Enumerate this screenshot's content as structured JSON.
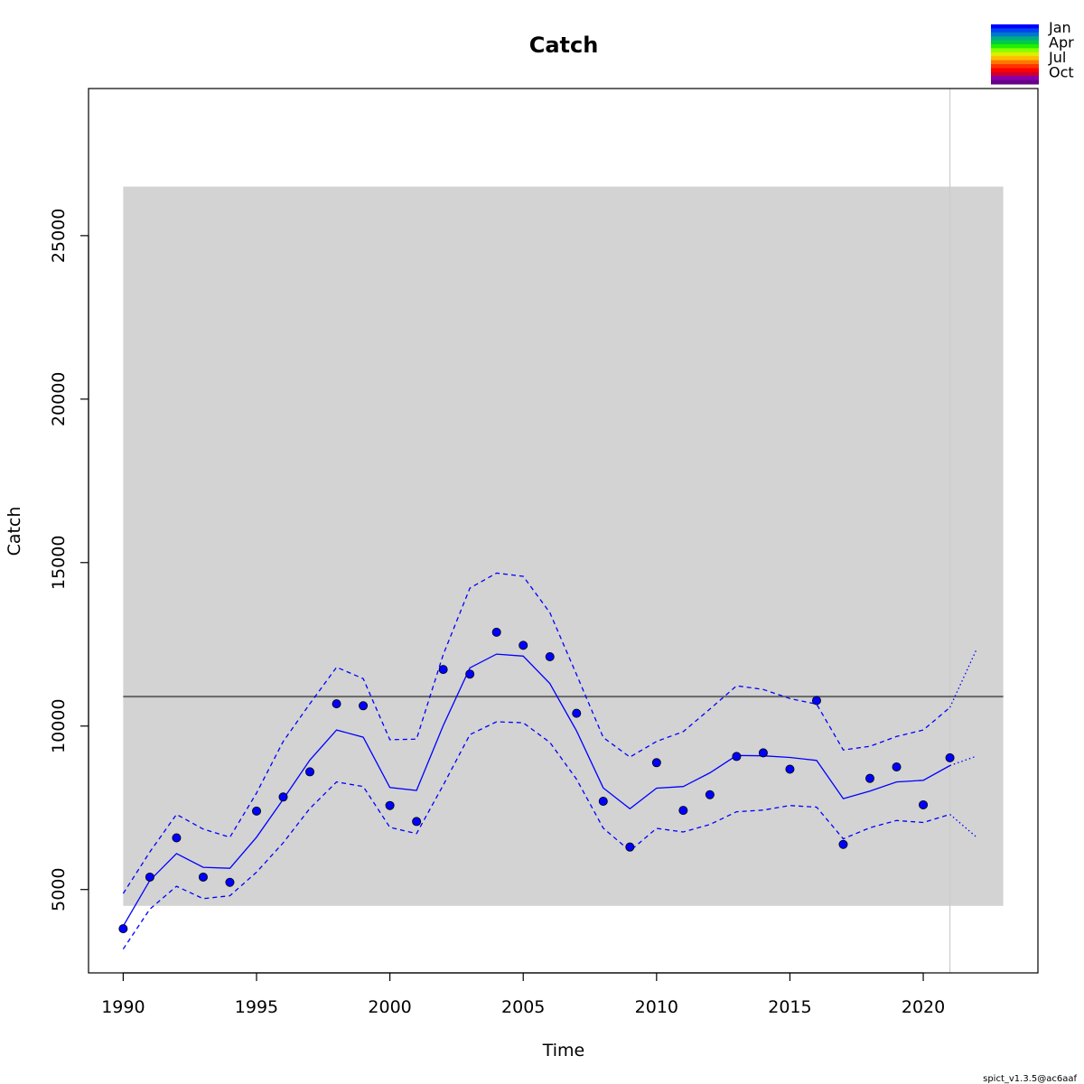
{
  "chart_data": {
    "type": "line",
    "title": "Catch",
    "xlabel": "Time",
    "ylabel": "Catch",
    "xlim": [
      1988.7,
      2024.3
    ],
    "ylim": [
      2450,
      29500
    ],
    "x_ticks": [
      1990,
      1995,
      2000,
      2005,
      2010,
      2015,
      2020
    ],
    "y_ticks": [
      5000,
      10000,
      15000,
      20000,
      25000
    ],
    "shaded_region": {
      "x": [
        1990,
        2023
      ],
      "y": [
        4500,
        26500
      ],
      "color": "#d3d3d3"
    },
    "reference_line": {
      "y": 10900,
      "color": "#666666"
    },
    "vertical_line": {
      "x": 2021,
      "color": "#cccccc"
    },
    "series": [
      {
        "role": "observed",
        "style": "points",
        "color": "#0000ff",
        "x": [
          1990,
          1991,
          1992,
          1993,
          1994,
          1995,
          1996,
          1997,
          1998,
          1999,
          2000,
          2001,
          2002,
          2003,
          2004,
          2005,
          2006,
          2007,
          2008,
          2009,
          2010,
          2011,
          2012,
          2013,
          2014,
          2015,
          2016,
          2017,
          2018,
          2019,
          2020,
          2021
        ],
        "y": [
          3800,
          5380,
          6580,
          5380,
          5220,
          7400,
          7830,
          8600,
          10680,
          10620,
          7570,
          7080,
          11730,
          11590,
          12870,
          12470,
          12120,
          10390,
          7700,
          6300,
          8880,
          7420,
          7900,
          9070,
          9180,
          8680,
          10780,
          6380,
          8400,
          8750,
          7590,
          9030
        ]
      },
      {
        "role": "estimate",
        "style": "solid",
        "color": "#0000ff",
        "x": [
          1990,
          1991,
          1992,
          1993,
          1994,
          1995,
          1996,
          1997,
          1998,
          1999,
          2000,
          2001,
          2002,
          2003,
          2004,
          2005,
          2006,
          2007,
          2008,
          2009,
          2010,
          2011,
          2012,
          2013,
          2014,
          2015,
          2016,
          2017,
          2018,
          2019,
          2020,
          2021
        ],
        "y": [
          3880,
          5280,
          6100,
          5680,
          5650,
          6600,
          7760,
          8960,
          9880,
          9660,
          8120,
          8030,
          10010,
          11780,
          12200,
          12140,
          11300,
          9850,
          8110,
          7470,
          8100,
          8150,
          8570,
          9100,
          9090,
          9040,
          8950,
          7780,
          8010,
          8290,
          8340,
          8790
        ]
      },
      {
        "role": "upper-ci",
        "style": "dashed",
        "color": "#0000ff",
        "x": [
          1990,
          1991,
          1992,
          1993,
          1994,
          1995,
          1996,
          1997,
          1998,
          1999,
          2000,
          2001,
          2002,
          2003,
          2004,
          2005,
          2006,
          2007,
          2008,
          2009,
          2010,
          2011,
          2012,
          2013,
          2014,
          2015,
          2016,
          2017,
          2018,
          2019,
          2020,
          2021
        ],
        "y": [
          4880,
          6150,
          7300,
          6850,
          6600,
          7950,
          9530,
          10680,
          11800,
          11450,
          9580,
          9600,
          12180,
          14220,
          14680,
          14580,
          13470,
          11570,
          9650,
          9050,
          9530,
          9830,
          10520,
          11230,
          11120,
          10840,
          10670,
          9270,
          9380,
          9680,
          9880,
          10570
        ]
      },
      {
        "role": "lower-ci",
        "style": "dashed",
        "color": "#0000ff",
        "x": [
          1990,
          1991,
          1992,
          1993,
          1994,
          1995,
          1996,
          1997,
          1998,
          1999,
          2000,
          2001,
          2002,
          2003,
          2004,
          2005,
          2006,
          2007,
          2008,
          2009,
          2010,
          2011,
          2012,
          2013,
          2014,
          2015,
          2016,
          2017,
          2018,
          2019,
          2020,
          2021
        ],
        "y": [
          3180,
          4400,
          5100,
          4720,
          4810,
          5530,
          6430,
          7480,
          8290,
          8150,
          6900,
          6710,
          8190,
          9740,
          10130,
          10100,
          9500,
          8370,
          6880,
          6180,
          6870,
          6760,
          6990,
          7380,
          7430,
          7570,
          7520,
          6550,
          6890,
          7110,
          7050,
          7300
        ]
      },
      {
        "role": "forecast-estimate",
        "style": "dotted",
        "color": "#0000ff",
        "x": [
          2021,
          2022
        ],
        "y": [
          8790,
          9080
        ]
      },
      {
        "role": "forecast-upper",
        "style": "dotted",
        "color": "#0000ff",
        "x": [
          2021,
          2022
        ],
        "y": [
          10570,
          12350
        ]
      },
      {
        "role": "forecast-lower",
        "style": "dotted",
        "color": "#0000ff",
        "x": [
          2021,
          2022
        ],
        "y": [
          7300,
          6600
        ]
      }
    ],
    "legend": {
      "position": "top-right",
      "entries": [
        "Jan",
        "Apr",
        "Jul",
        "Oct"
      ],
      "colors": [
        "#0000ff",
        "#0044ee",
        "#0077cc",
        "#00aa88",
        "#00cc44",
        "#22ee00",
        "#88ff00",
        "#ddee00",
        "#ffbb00",
        "#ff7700",
        "#ff3300",
        "#ff0000",
        "#cc0033",
        "#8800aa",
        "#660088"
      ]
    }
  },
  "footer": "spict_v1.3.5@ac6aaf"
}
